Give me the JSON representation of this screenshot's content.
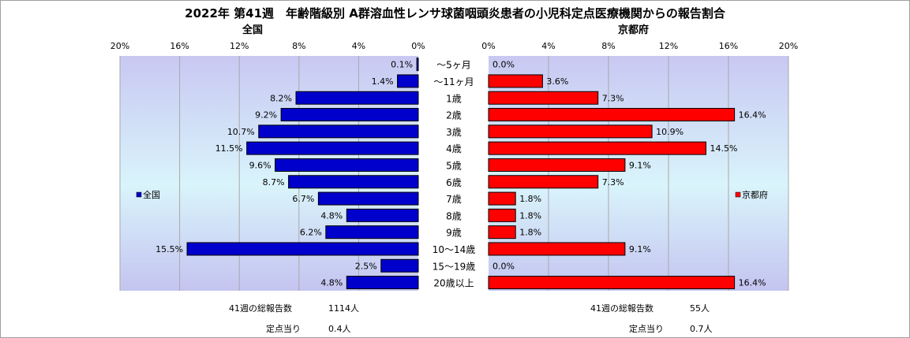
{
  "title": "2022年 第41週　年齢階級別 A群溶血性レンサ球菌咽頭炎患者の小児科定点医療機関からの報告割合",
  "chart_data": [
    {
      "type": "bar",
      "orientation": "horizontal",
      "title": "全国",
      "legend": "全国",
      "legend_position": "left",
      "color": "#0000cc",
      "categories": [
        "～5ヶ月",
        "～11ヶ月",
        "1歳",
        "2歳",
        "3歳",
        "4歳",
        "5歳",
        "6歳",
        "7歳",
        "8歳",
        "9歳",
        "10～14歳",
        "15～19歳",
        "20歳以上"
      ],
      "values": [
        0.1,
        1.4,
        8.2,
        9.2,
        10.7,
        11.5,
        9.6,
        8.7,
        6.7,
        4.8,
        6.2,
        15.5,
        2.5,
        4.8
      ],
      "value_labels": [
        "0.1%",
        "1.4%",
        "8.2%",
        "9.2%",
        "10.7%",
        "11.5%",
        "9.6%",
        "8.7%",
        "6.7%",
        "4.8%",
        "6.2%",
        "15.5%",
        "2.5%",
        "4.8%"
      ],
      "xlim": [
        0,
        20
      ],
      "x_reversed": true,
      "ticks": [
        "20%",
        "16%",
        "12%",
        "8%",
        "4%",
        "0%"
      ],
      "grid": true
    },
    {
      "type": "bar",
      "orientation": "horizontal",
      "title": "京都府",
      "legend": "京都府",
      "legend_position": "right",
      "color": "#ff0000",
      "categories": [
        "～5ヶ月",
        "～11ヶ月",
        "1歳",
        "2歳",
        "3歳",
        "4歳",
        "5歳",
        "6歳",
        "7歳",
        "8歳",
        "9歳",
        "10～14歳",
        "15～19歳",
        "20歳以上"
      ],
      "values": [
        0.0,
        3.6,
        7.3,
        16.4,
        10.9,
        14.5,
        9.1,
        7.3,
        1.8,
        1.8,
        1.8,
        9.1,
        0.0,
        16.4
      ],
      "value_labels": [
        "0.0%",
        "3.6%",
        "7.3%",
        "16.4%",
        "10.9%",
        "14.5%",
        "9.1%",
        "7.3%",
        "1.8%",
        "1.8%",
        "1.8%",
        "9.1%",
        "0.0%",
        "16.4%"
      ],
      "xlim": [
        0,
        20
      ],
      "ticks": [
        "0%",
        "4%",
        "8%",
        "12%",
        "16%",
        "20%"
      ],
      "grid": true
    }
  ],
  "footer": {
    "national": {
      "total_label": "41週の総報告数",
      "total_value": "1114人",
      "per_label": "定点当り",
      "per_value": "0.4人"
    },
    "kyoto": {
      "total_label": "41週の総報告数",
      "total_value": "55人",
      "per_label": "定点当り",
      "per_value": "0.7人"
    }
  }
}
